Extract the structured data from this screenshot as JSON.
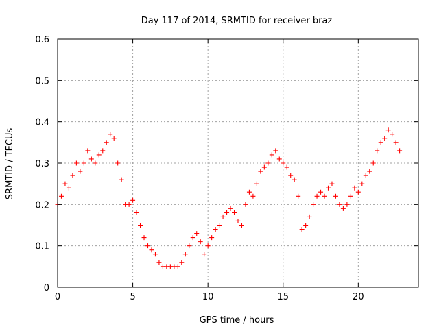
{
  "chart_data": {
    "type": "scatter",
    "title": "Day 117 of 2014, SRMTID for receiver braz",
    "xlabel": "GPS time / hours",
    "ylabel": "SRMTID / TECUs",
    "xlim": [
      0,
      24
    ],
    "ylim": [
      0,
      0.6
    ],
    "xticks": [
      0,
      5,
      10,
      15,
      20
    ],
    "yticks": [
      0,
      0.1,
      0.2,
      0.3,
      0.4,
      0.5,
      0.6
    ],
    "xtick_labels": [
      "0",
      "5",
      "10",
      "15",
      "20"
    ],
    "ytick_labels": [
      "0",
      "0.1",
      "0.2",
      "0.3",
      "0.4",
      "0.5",
      "0.6"
    ],
    "grid": true,
    "marker": "+",
    "color": "#ff0000",
    "series": [
      {
        "name": "braz",
        "x": [
          0.0,
          0.25,
          0.5,
          0.75,
          1.0,
          1.25,
          1.5,
          1.75,
          2.0,
          2.25,
          2.5,
          2.75,
          3.0,
          3.25,
          3.5,
          3.75,
          4.0,
          4.25,
          4.5,
          4.75,
          5.0,
          5.25,
          5.5,
          5.75,
          6.0,
          6.25,
          6.5,
          6.75,
          7.0,
          7.25,
          7.5,
          7.75,
          8.0,
          8.25,
          8.5,
          8.75,
          9.0,
          9.25,
          9.5,
          9.75,
          10.0,
          10.25,
          10.5,
          10.75,
          11.0,
          11.25,
          11.5,
          11.75,
          12.0,
          12.25,
          12.5,
          12.75,
          13.0,
          13.25,
          13.5,
          13.75,
          14.0,
          14.25,
          14.5,
          14.75,
          15.0,
          15.25,
          15.5,
          15.75,
          16.0,
          16.25,
          16.5,
          16.75,
          17.0,
          17.25,
          17.5,
          17.75,
          18.0,
          18.25,
          18.5,
          18.75,
          19.0,
          19.25,
          19.5,
          19.75,
          20.0,
          20.25,
          20.5,
          20.75,
          21.0,
          21.25,
          21.5,
          21.75,
          22.0,
          22.25,
          22.5,
          22.75
        ],
        "y": [
          0.2,
          0.22,
          0.25,
          0.24,
          0.27,
          0.3,
          0.28,
          0.3,
          0.33,
          0.31,
          0.3,
          0.32,
          0.33,
          0.35,
          0.37,
          0.36,
          0.3,
          0.26,
          0.2,
          0.2,
          0.21,
          0.18,
          0.15,
          0.12,
          0.1,
          0.09,
          0.08,
          0.06,
          0.05,
          0.05,
          0.05,
          0.05,
          0.05,
          0.06,
          0.08,
          0.1,
          0.12,
          0.13,
          0.11,
          0.08,
          0.1,
          0.12,
          0.14,
          0.15,
          0.17,
          0.18,
          0.19,
          0.18,
          0.16,
          0.15,
          0.2,
          0.23,
          0.22,
          0.25,
          0.28,
          0.29,
          0.3,
          0.32,
          0.33,
          0.31,
          0.3,
          0.29,
          0.27,
          0.26,
          0.22,
          0.14,
          0.15,
          0.17,
          0.2,
          0.22,
          0.23,
          0.22,
          0.24,
          0.25,
          0.22,
          0.2,
          0.19,
          0.2,
          0.22,
          0.24,
          0.23,
          0.25,
          0.27,
          0.28,
          0.3,
          0.33,
          0.35,
          0.36,
          0.38,
          0.37,
          0.35,
          0.33
        ]
      }
    ]
  }
}
